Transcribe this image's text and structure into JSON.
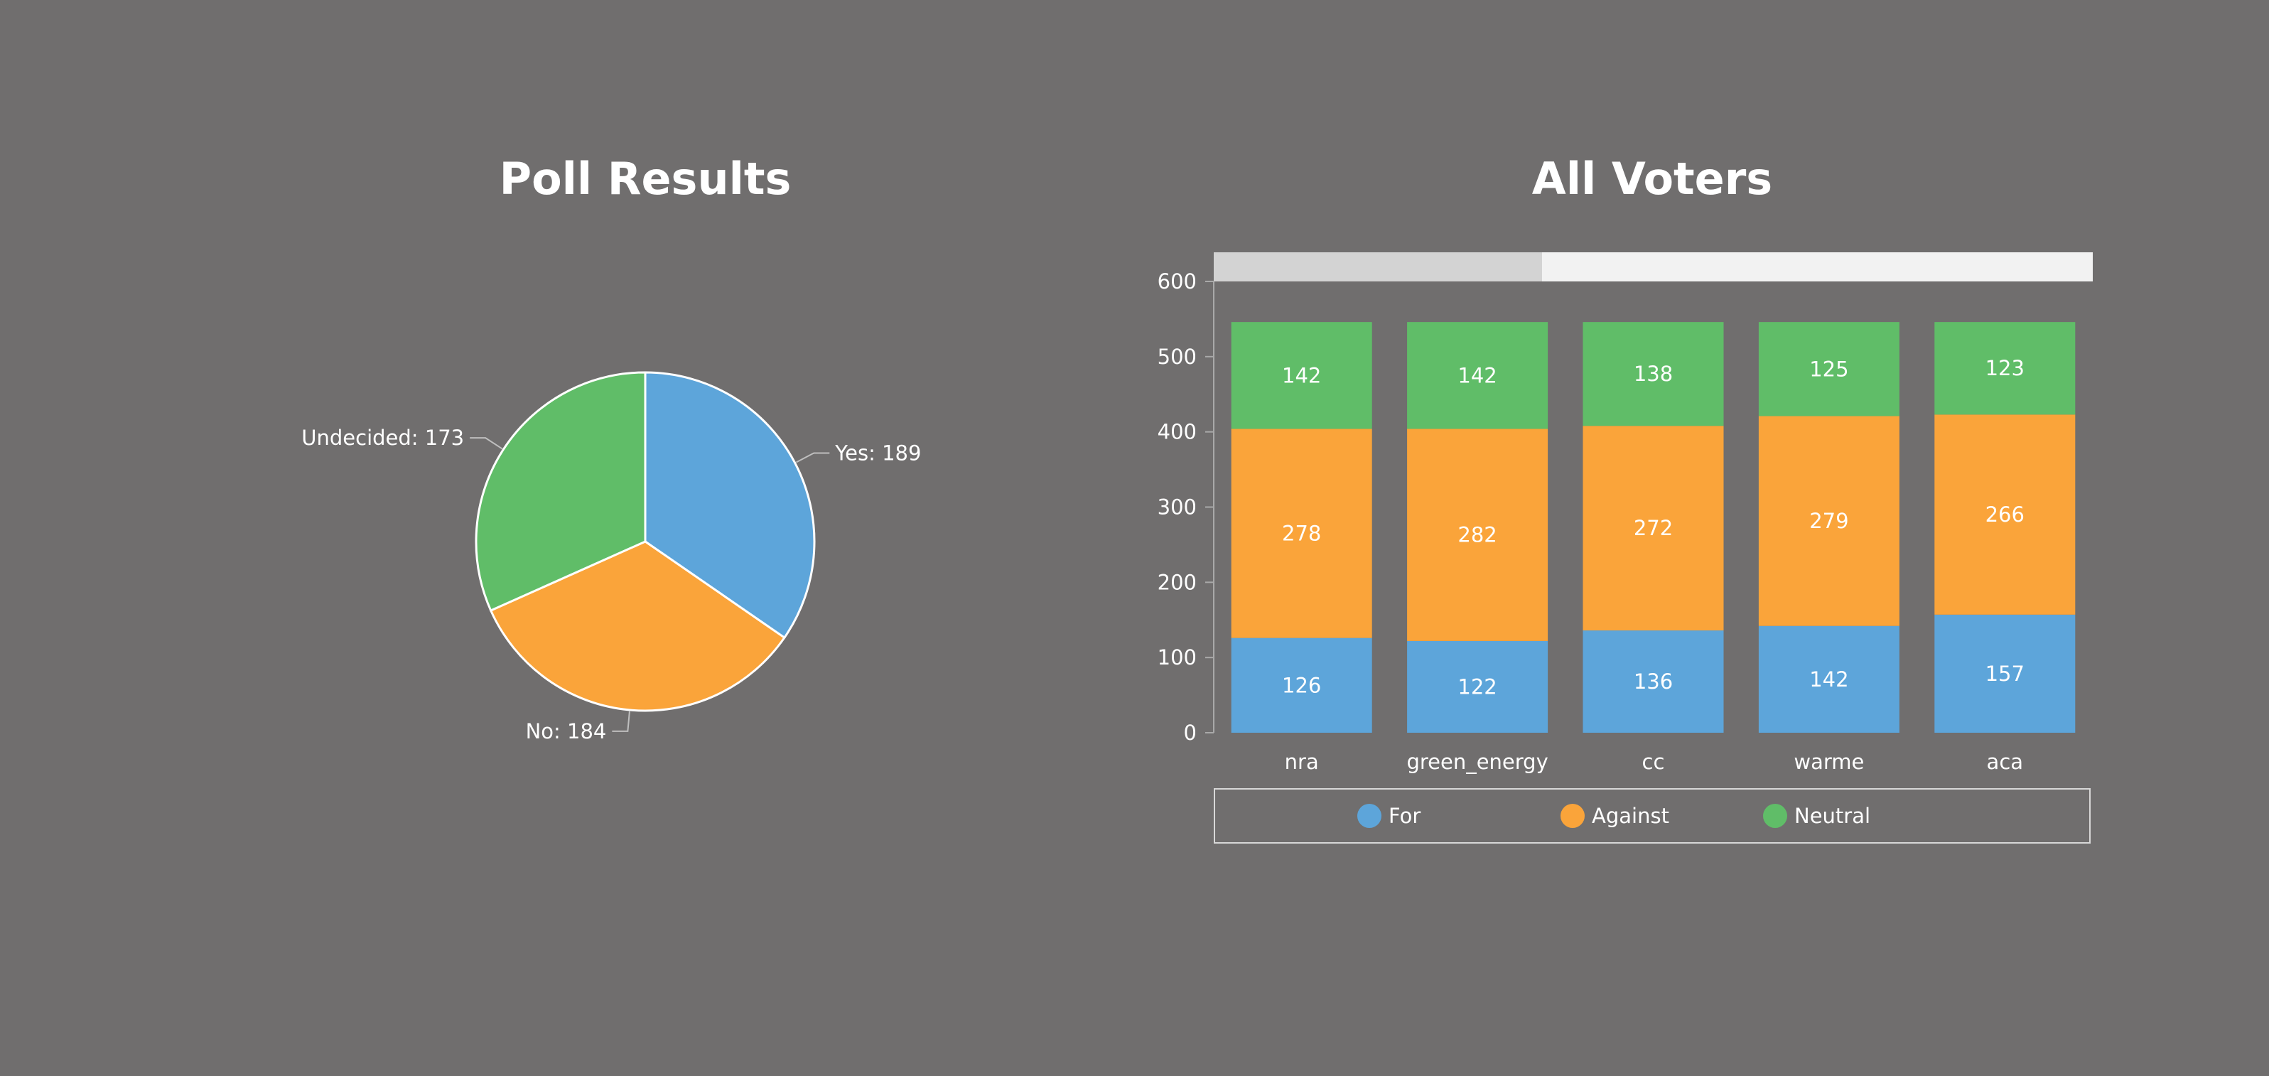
{
  "chart_data": [
    {
      "type": "pie",
      "title": "Poll Results",
      "slices": [
        {
          "name": "Yes",
          "value": 189,
          "label": "Yes: 189",
          "color": "#5da5da"
        },
        {
          "name": "No",
          "value": 184,
          "label": "No: 184",
          "color": "#faa43a"
        },
        {
          "name": "Undecided",
          "value": 173,
          "label": "Undecided: 173",
          "color": "#60bd68"
        }
      ]
    },
    {
      "type": "bar",
      "stacked": true,
      "title": "All Voters",
      "categories": [
        "nra",
        "green_energy",
        "cc",
        "warme",
        "aca"
      ],
      "series": [
        {
          "name": "For",
          "color": "#5da5da",
          "values": [
            126,
            122,
            136,
            142,
            157
          ]
        },
        {
          "name": "Against",
          "color": "#faa43a",
          "values": [
            278,
            282,
            272,
            279,
            266
          ]
        },
        {
          "name": "Neutral",
          "color": "#60bd68",
          "values": [
            142,
            142,
            138,
            125,
            123
          ]
        }
      ],
      "ylim": [
        0,
        600
      ],
      "yticks": [
        0,
        100,
        200,
        300,
        400,
        500,
        600
      ],
      "legend_position": "bottom",
      "has_scrollbar": true
    }
  ]
}
